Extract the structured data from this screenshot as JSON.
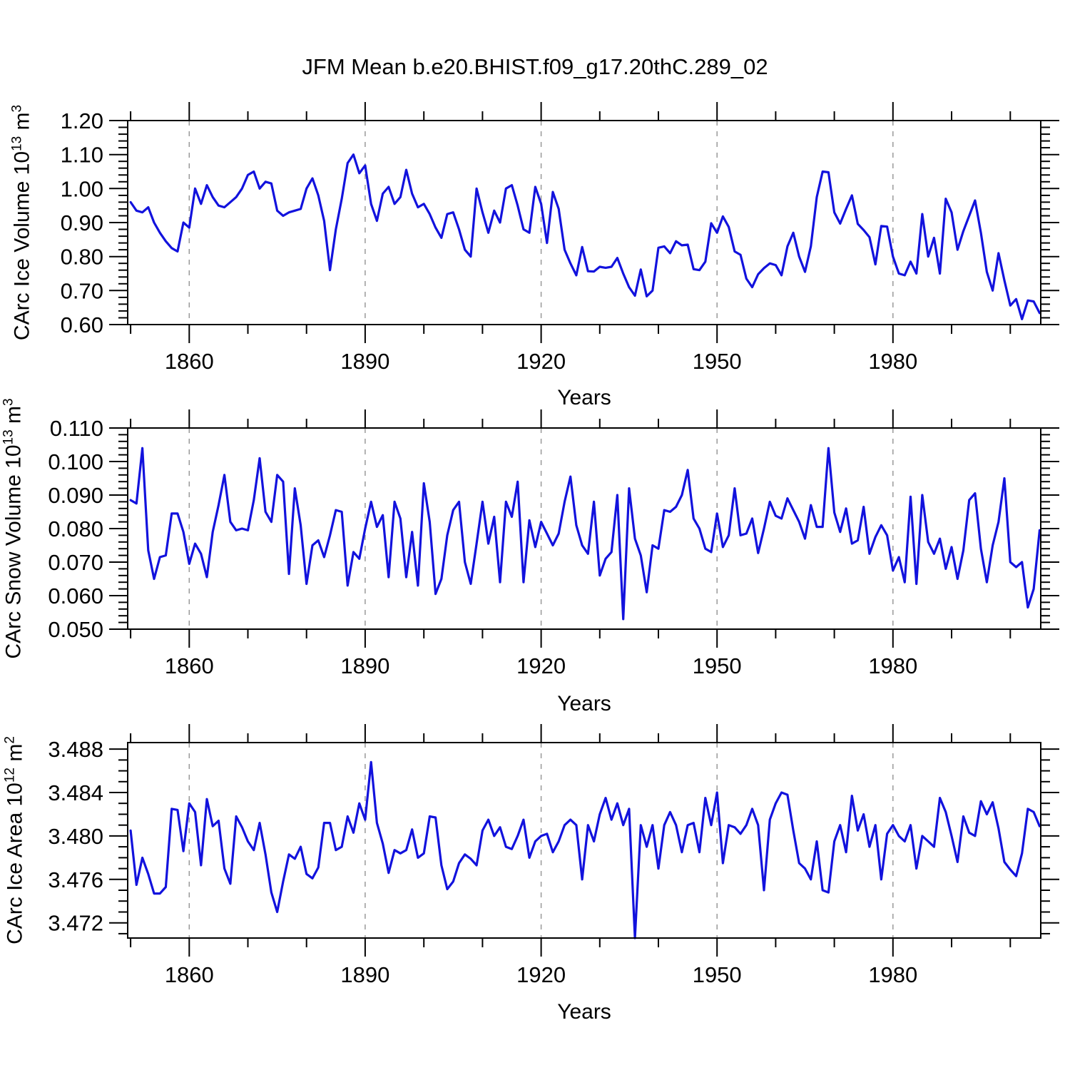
{
  "title": "JFM Mean b.e20.BHIST.f09_g17.20thC.289_02",
  "colors": {
    "line": "#1212dd",
    "frame": "#000000",
    "grid": "#999999",
    "text": "#000000",
    "background": "#ffffff"
  },
  "chart_data": [
    {
      "type": "line",
      "panel": 1,
      "xlabel": "Years",
      "ylabel": {
        "base": "CArc Ice Volume 10",
        "exp": "13",
        "unit": " m",
        "unit_exp": "3"
      },
      "x_start": 1850,
      "x_step": 1,
      "xlim": [
        1849.5,
        2005.2
      ],
      "ylim": [
        0.6,
        1.2
      ],
      "xticks": [
        1860,
        1890,
        1920,
        1950,
        1980
      ],
      "x_minor_step": 10,
      "x_minor_range": [
        1850,
        2000
      ],
      "yticks": [
        0.6,
        0.7,
        0.8,
        0.9,
        1.0,
        1.1,
        1.2
      ],
      "y_minor_step": 0.02,
      "y_decimals": 2,
      "grid": "vertical-dashed-at-major-xticks",
      "legend": "none",
      "values": [
        0.96,
        0.935,
        0.93,
        0.945,
        0.9,
        0.87,
        0.845,
        0.825,
        0.815,
        0.9,
        0.885,
        1.0,
        0.955,
        1.01,
        0.975,
        0.95,
        0.945,
        0.96,
        0.975,
        1.0,
        1.04,
        1.05,
        1.0,
        1.02,
        1.015,
        0.935,
        0.92,
        0.93,
        0.935,
        0.94,
        1.0,
        1.03,
        0.98,
        0.905,
        0.76,
        0.88,
        0.97,
        1.075,
        1.1,
        1.045,
        1.068,
        0.955,
        0.905,
        0.985,
        1.005,
        0.955,
        0.975,
        1.055,
        0.985,
        0.945,
        0.955,
        0.925,
        0.885,
        0.855,
        0.925,
        0.93,
        0.88,
        0.82,
        0.8,
        1.0,
        0.93,
        0.87,
        0.935,
        0.9,
        1.0,
        1.01,
        0.95,
        0.88,
        0.87,
        1.005,
        0.955,
        0.84,
        0.99,
        0.94,
        0.82,
        0.78,
        0.745,
        0.828,
        0.757,
        0.756,
        0.77,
        0.767,
        0.77,
        0.796,
        0.75,
        0.71,
        0.685,
        0.762,
        0.683,
        0.7,
        0.826,
        0.83,
        0.81,
        0.845,
        0.833,
        0.835,
        0.763,
        0.76,
        0.785,
        0.898,
        0.87,
        0.918,
        0.887,
        0.815,
        0.805,
        0.735,
        0.71,
        0.748,
        0.766,
        0.78,
        0.775,
        0.745,
        0.83,
        0.87,
        0.8,
        0.755,
        0.83,
        0.975,
        1.05,
        1.048,
        0.93,
        0.897,
        0.94,
        0.98,
        0.896,
        0.878,
        0.857,
        0.777,
        0.89,
        0.888,
        0.8,
        0.75,
        0.745,
        0.785,
        0.75,
        0.925,
        0.8,
        0.855,
        0.75,
        0.97,
        0.93,
        0.82,
        0.875,
        0.92,
        0.965,
        0.87,
        0.755,
        0.7,
        0.81,
        0.73,
        0.656,
        0.675,
        0.616,
        0.671,
        0.668,
        0.634
      ]
    },
    {
      "type": "line",
      "panel": 2,
      "xlabel": "Years",
      "ylabel": {
        "base": "CArc Snow Volume 10",
        "exp": "13",
        "unit": " m",
        "unit_exp": "3"
      },
      "x_start": 1850,
      "x_step": 1,
      "xlim": [
        1849.5,
        2005.2
      ],
      "ylim": [
        0.05,
        0.11
      ],
      "xticks": [
        1860,
        1890,
        1920,
        1950,
        1980
      ],
      "x_minor_step": 10,
      "x_minor_range": [
        1850,
        2000
      ],
      "yticks": [
        0.05,
        0.06,
        0.07,
        0.08,
        0.09,
        0.1,
        0.11
      ],
      "y_minor_step": 0.002,
      "y_decimals": 3,
      "grid": "vertical-dashed-at-major-xticks",
      "legend": "none",
      "values": [
        0.0885,
        0.0875,
        0.104,
        0.0735,
        0.065,
        0.0715,
        0.072,
        0.0845,
        0.0845,
        0.079,
        0.0695,
        0.0755,
        0.0725,
        0.0655,
        0.079,
        0.087,
        0.096,
        0.082,
        0.0795,
        0.08,
        0.0795,
        0.0885,
        0.101,
        0.085,
        0.082,
        0.096,
        0.094,
        0.0665,
        0.092,
        0.081,
        0.0635,
        0.075,
        0.0765,
        0.0715,
        0.078,
        0.0855,
        0.085,
        0.063,
        0.073,
        0.071,
        0.08,
        0.088,
        0.0805,
        0.084,
        0.0655,
        0.088,
        0.083,
        0.0655,
        0.079,
        0.063,
        0.0935,
        0.082,
        0.0605,
        0.065,
        0.078,
        0.0855,
        0.088,
        0.07,
        0.0635,
        0.0755,
        0.088,
        0.0755,
        0.0835,
        0.064,
        0.088,
        0.0835,
        0.094,
        0.064,
        0.0825,
        0.0745,
        0.082,
        0.0785,
        0.075,
        0.0785,
        0.088,
        0.0955,
        0.081,
        0.075,
        0.0725,
        0.088,
        0.066,
        0.071,
        0.073,
        0.09,
        0.053,
        0.092,
        0.077,
        0.072,
        0.061,
        0.075,
        0.074,
        0.0855,
        0.085,
        0.0865,
        0.09,
        0.0975,
        0.083,
        0.08,
        0.074,
        0.073,
        0.0845,
        0.0745,
        0.078,
        0.092,
        0.078,
        0.0785,
        0.083,
        0.0727,
        0.08,
        0.088,
        0.0838,
        0.083,
        0.089,
        0.0855,
        0.082,
        0.077,
        0.087,
        0.0805,
        0.0805,
        0.104,
        0.0848,
        0.079,
        0.086,
        0.0755,
        0.0765,
        0.0865,
        0.0725,
        0.0775,
        0.081,
        0.078,
        0.0675,
        0.0715,
        0.064,
        0.0895,
        0.0635,
        0.09,
        0.076,
        0.0725,
        0.077,
        0.068,
        0.0745,
        0.065,
        0.0735,
        0.0885,
        0.0905,
        0.074,
        0.064,
        0.075,
        0.082,
        0.095,
        0.07,
        0.0685,
        0.07,
        0.0565,
        0.062,
        0.0795
      ]
    },
    {
      "type": "line",
      "panel": 3,
      "xlabel": "Years",
      "ylabel": {
        "base": "CArc Ice Area 10",
        "exp": "12",
        "unit": " m",
        "unit_exp": "2"
      },
      "x_start": 1850,
      "x_step": 1,
      "xlim": [
        1849.5,
        2005.2
      ],
      "ylim": [
        3.4706,
        3.4886
      ],
      "xticks": [
        1860,
        1890,
        1920,
        1950,
        1980
      ],
      "x_minor_step": 10,
      "x_minor_range": [
        1850,
        2000
      ],
      "yticks": [
        3.472,
        3.476,
        3.48,
        3.484,
        3.488
      ],
      "y_minor_step": 0.001,
      "y_decimals": 3,
      "grid": "vertical-dashed-at-major-xticks",
      "legend": "none",
      "values": [
        3.4805,
        3.4755,
        3.478,
        3.4765,
        3.4747,
        3.4747,
        3.4753,
        3.4825,
        3.4824,
        3.4786,
        3.483,
        3.4822,
        3.4773,
        3.4834,
        3.4809,
        3.4814,
        3.477,
        3.4756,
        3.4818,
        3.4808,
        3.4795,
        3.4787,
        3.4812,
        3.4783,
        3.4748,
        3.473,
        3.4758,
        3.4783,
        3.4779,
        3.479,
        3.4765,
        3.4761,
        3.4771,
        3.4812,
        3.4812,
        3.4787,
        3.479,
        3.4818,
        3.4803,
        3.483,
        3.4815,
        3.4868,
        3.4812,
        3.4793,
        3.4766,
        3.4787,
        3.4784,
        3.4787,
        3.4806,
        3.478,
        3.4784,
        3.4818,
        3.4817,
        3.4773,
        3.4751,
        3.4758,
        3.4775,
        3.4783,
        3.4779,
        3.4773,
        3.4805,
        3.4815,
        3.48,
        3.4808,
        3.479,
        3.4788,
        3.48,
        3.4815,
        3.478,
        3.4795,
        3.48,
        3.4802,
        3.4785,
        3.4795,
        3.481,
        3.4815,
        3.481,
        3.476,
        3.481,
        3.4795,
        3.482,
        3.4835,
        3.4815,
        3.483,
        3.481,
        3.4825,
        3.4706,
        3.481,
        3.479,
        3.481,
        3.477,
        3.481,
        3.4822,
        3.481,
        3.4785,
        3.481,
        3.4812,
        3.4785,
        3.4835,
        3.481,
        3.484,
        3.4775,
        3.481,
        3.4808,
        3.4802,
        3.481,
        3.4825,
        3.481,
        3.475,
        3.4815,
        3.483,
        3.484,
        3.4838,
        3.4805,
        3.4775,
        3.477,
        3.476,
        3.4795,
        3.475,
        3.4748,
        3.4795,
        3.481,
        3.4785,
        3.4837,
        3.4805,
        3.482,
        3.479,
        3.481,
        3.476,
        3.4802,
        3.481,
        3.48,
        3.4795,
        3.481,
        3.477,
        3.48,
        3.4795,
        3.479,
        3.4835,
        3.4822,
        3.48,
        3.4776,
        3.4818,
        3.4803,
        3.48,
        3.4832,
        3.482,
        3.4831,
        3.4807,
        3.4776,
        3.4769,
        3.4763,
        3.4784,
        3.4825,
        3.4822,
        3.4809
      ]
    }
  ]
}
